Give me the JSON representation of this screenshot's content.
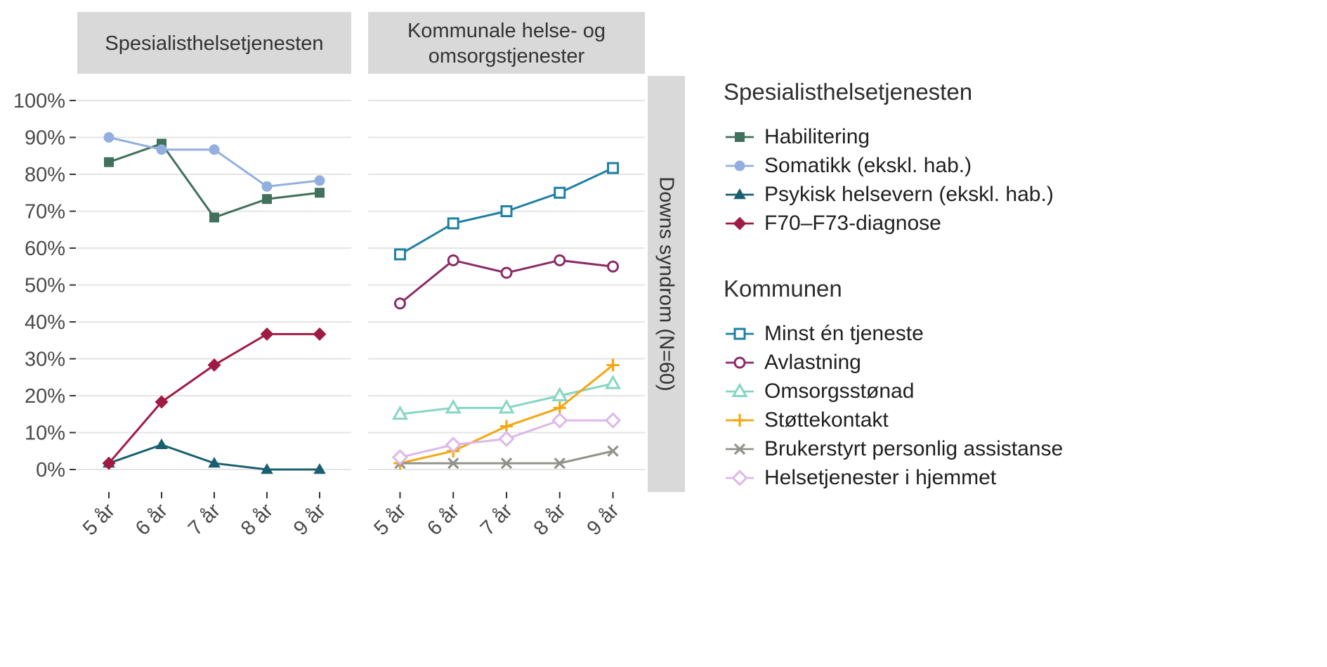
{
  "legend": {
    "groups": [
      {
        "title": "Spesialisthelsetjenesten",
        "items": [
          {
            "label": "Habilitering",
            "marker": "square-filled",
            "color": "#41705C"
          },
          {
            "label": "Somatikk (ekskl. hab.)",
            "marker": "circle-filled",
            "color": "#92AFE0"
          },
          {
            "label": "Psykisk helsevern (ekskl. hab.)",
            "marker": "triangle-filled",
            "color": "#1A5F70"
          },
          {
            "label": "F70–F73-diagnose",
            "marker": "diamond-filled",
            "color": "#A01B44"
          }
        ]
      },
      {
        "title": "Kommunen",
        "items": [
          {
            "label": "Minst én tjeneste",
            "marker": "square-open",
            "color": "#1F7FA3"
          },
          {
            "label": "Avlastning",
            "marker": "circle-open",
            "color": "#8A2A67"
          },
          {
            "label": "Omsorgsstønad",
            "marker": "triangle-open",
            "color": "#85D6C2"
          },
          {
            "label": "Støttekontakt",
            "marker": "plus",
            "color": "#F3A712"
          },
          {
            "label": "Brukerstyrt personlig assistanse",
            "marker": "x",
            "color": "#90938B"
          },
          {
            "label": "Helsetjenester i hjemmet",
            "marker": "diamond-open",
            "color": "#DBB8E8"
          }
        ]
      }
    ]
  },
  "chart_data": {
    "type": "line",
    "x_categories": [
      "5 år",
      "6 år",
      "7 år",
      "8 år",
      "9 år"
    ],
    "xlabel": "",
    "ylabel": "",
    "ylim": [
      0,
      100
    ],
    "ytick_values": [
      0,
      10,
      20,
      30,
      40,
      50,
      60,
      70,
      80,
      90,
      100
    ],
    "ytick_labels": [
      "0%",
      "10%",
      "20%",
      "30%",
      "40%",
      "50%",
      "60%",
      "70%",
      "80%",
      "90%",
      "100%"
    ],
    "grid": "horizontal-major",
    "legend_position": "right",
    "right_strip_label": "Downs syndrom (N=60)",
    "facets": [
      {
        "title": "Spesialisthelsetjenesten",
        "strip_title_lines": [
          "Spesialisthelsetjenesten"
        ],
        "series": [
          {
            "name": "Habilitering",
            "marker": "square-filled",
            "color": "#41705C",
            "values": [
              83.3,
              88.3,
              68.3,
              73.3,
              75
            ]
          },
          {
            "name": "Somatikk (ekskl. hab.)",
            "marker": "circle-filled",
            "color": "#92AFE0",
            "values": [
              90,
              86.7,
              86.7,
              76.7,
              78.3
            ]
          },
          {
            "name": "Psykisk helsevern (ekskl. hab.)",
            "marker": "triangle-filled",
            "color": "#1A5F70",
            "values": [
              1.7,
              6.7,
              1.7,
              0,
              0
            ]
          },
          {
            "name": "F70–F73-diagnose",
            "marker": "diamond-filled",
            "color": "#A01B44",
            "values": [
              1.7,
              18.3,
              28.3,
              36.7,
              36.7
            ]
          }
        ]
      },
      {
        "title": "Kommunale helse- og omsorgstjenester",
        "strip_title_lines": [
          "Kommunale helse- og",
          "omsorgstjenester"
        ],
        "series": [
          {
            "name": "Minst én tjeneste",
            "marker": "square-open",
            "color": "#1F7FA3",
            "values": [
              58.3,
              66.7,
              70,
              75,
              81.7
            ]
          },
          {
            "name": "Avlastning",
            "marker": "circle-open",
            "color": "#8A2A67",
            "values": [
              45,
              56.7,
              53.3,
              56.7,
              55
            ]
          },
          {
            "name": "Omsorgsstønad",
            "marker": "triangle-open",
            "color": "#85D6C2",
            "values": [
              15,
              16.7,
              16.7,
              20,
              23.3
            ]
          },
          {
            "name": "Støttekontakt",
            "marker": "plus",
            "color": "#F3A712",
            "values": [
              1.7,
              5,
              11.7,
              16.7,
              28.3
            ]
          },
          {
            "name": "Brukerstyrt personlig assistanse",
            "marker": "x",
            "color": "#90938B",
            "values": [
              1.7,
              1.7,
              1.7,
              1.7,
              5
            ]
          },
          {
            "name": "Helsetjenester i hjemmet",
            "marker": "diamond-open",
            "color": "#DBB8E8",
            "values": [
              3.3,
              6.7,
              8.3,
              13.3,
              13.3
            ]
          }
        ]
      }
    ],
    "style": {
      "strip_fill": "#D9D9D9",
      "strip_text_color": "#333333",
      "grid_color": "#E4E4E4",
      "tick_color": "#333333",
      "axis_text_color": "#4A4A4A",
      "background": "#FFFFFF"
    }
  }
}
